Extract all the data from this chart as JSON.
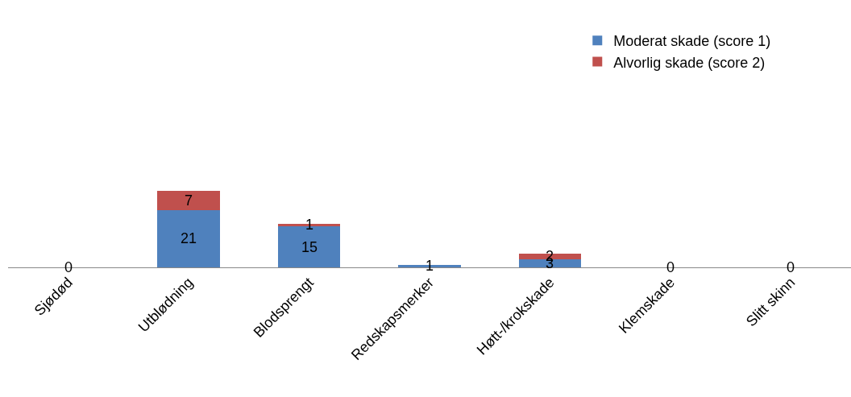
{
  "chart_data": {
    "type": "bar",
    "stacked": true,
    "categories": [
      "Sjødød",
      "Utblødning",
      "Blodsprengt",
      "Redskapsmerker",
      "Høtt-/krokskade",
      "Klemskade",
      "Slitt skinn"
    ],
    "series": [
      {
        "name": "Moderat skade (score 1)",
        "color": "#4f81bd",
        "values": [
          0,
          21,
          15,
          1,
          3,
          0,
          0
        ],
        "value_labels": [
          "0",
          "21",
          "15",
          "1",
          "3",
          "0",
          "0"
        ]
      },
      {
        "name": "Alvorlig skade (score 2)",
        "color": "#c0504d",
        "values": [
          0,
          7,
          1,
          0,
          2,
          0,
          0
        ],
        "value_labels": [
          null,
          "7",
          "1",
          null,
          "2",
          null,
          null
        ]
      }
    ],
    "tick_labels": "x",
    "legend": "top right",
    "grid": false
  }
}
